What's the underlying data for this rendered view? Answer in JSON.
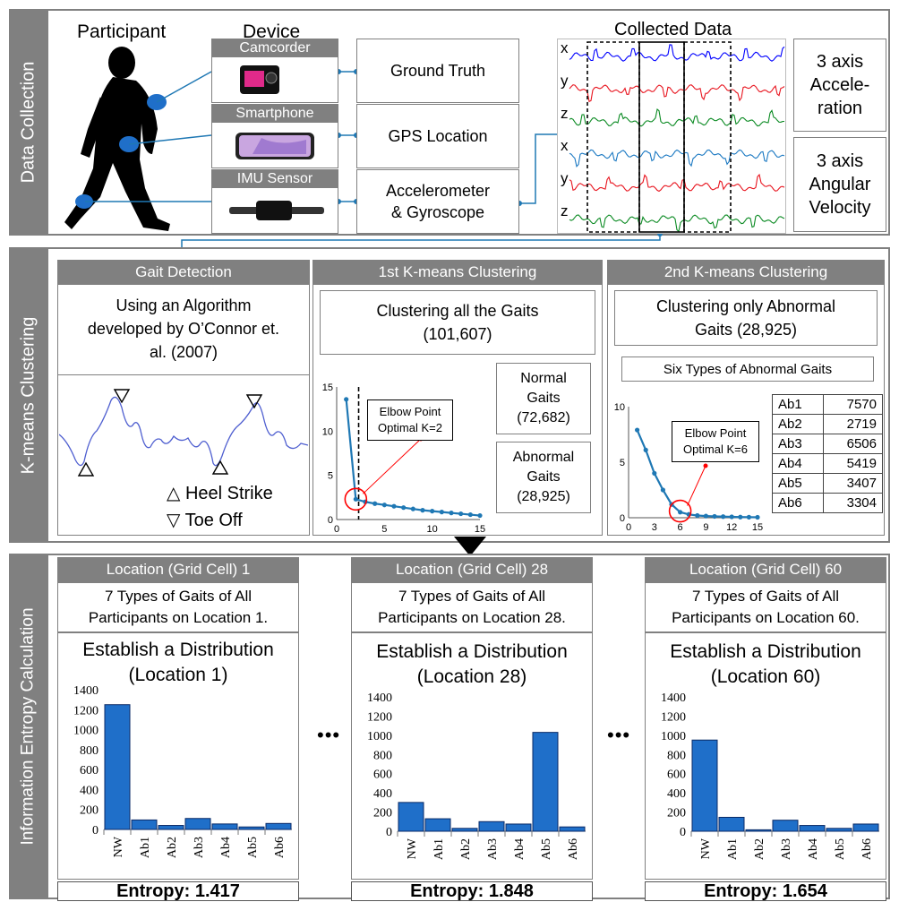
{
  "sections": {
    "data_collection": "Data Collection",
    "kmeans": "K-means Clustering",
    "entropy": "Information Entropy Calculation"
  },
  "collection": {
    "participant_title": "Participant",
    "device_title": "Device",
    "collected_title": "Collected Data",
    "devices": [
      {
        "name": "Camcorder",
        "output": "Ground Truth"
      },
      {
        "name": "Smartphone",
        "output": "GPS Location"
      },
      {
        "name": "IMU Sensor",
        "output": "Accelerometer & Gyroscope"
      }
    ],
    "output_line1": "Accelerometer",
    "output_line2": "& Gyroscope",
    "axis_labels": [
      "x",
      "y",
      "z",
      "x",
      "y",
      "z"
    ],
    "signal_colors": [
      "#0000ff",
      "#e8141e",
      "#0a8a22",
      "#1a78c2",
      "#e8141e",
      "#0a8a22"
    ],
    "accel": [
      "3 axis",
      "Accele-",
      "ration"
    ],
    "angular": [
      "3 axis",
      "Angular",
      "Velocity"
    ]
  },
  "gait_detection": {
    "header": "Gait Detection",
    "desc": [
      "Using an Algorithm",
      "developed by O’Connor et.",
      "al. (2007)"
    ],
    "heel_strike": "△ Heel Strike",
    "toe_off": "▽ Toe Off"
  },
  "first_kmeans": {
    "header": "1st K-means Clustering",
    "desc": [
      "Clustering all the Gaits",
      "(101,607)"
    ],
    "elbow": [
      "Elbow Point",
      "Optimal K=2"
    ],
    "normal": [
      "Normal",
      "Gaits",
      "(72,682)"
    ],
    "abnormal": [
      "Abnormal",
      "Gaits",
      "(28,925)"
    ],
    "yticks": [
      "0",
      "5",
      "10",
      "15"
    ],
    "xticks": [
      "0",
      "5",
      "10",
      "15"
    ]
  },
  "second_kmeans": {
    "header": "2nd K-means Clustering",
    "desc": [
      "Clustering only Abnormal",
      "Gaits (28,925)"
    ],
    "six_types": "Six Types of Abnormal Gaits",
    "elbow": [
      "Elbow Point",
      "Optimal K=6"
    ],
    "yticks": [
      "0",
      "5",
      "10"
    ],
    "xticks": [
      "0",
      "3",
      "6",
      "9",
      "12",
      "15"
    ],
    "table": [
      {
        "label": "Ab1",
        "value": "7570"
      },
      {
        "label": "Ab2",
        "value": "2719"
      },
      {
        "label": "Ab3",
        "value": "6506"
      },
      {
        "label": "Ab4",
        "value": "5419"
      },
      {
        "label": "Ab5",
        "value": "3407"
      },
      {
        "label": "Ab6",
        "value": "3304"
      }
    ]
  },
  "ellipsis": "•••",
  "locations": [
    {
      "header": "Location (Grid Cell) 1",
      "desc": [
        "7 Types of Gaits of All",
        "Participants on Location 1."
      ],
      "dist": [
        "Establish a Distribution",
        "(Location 1)"
      ],
      "entropy": "Entropy: 1.417"
    },
    {
      "header": "Location (Grid Cell) 28",
      "desc": [
        "7 Types of Gaits of All",
        "Participants on Location 28."
      ],
      "dist": [
        "Establish a Distribution",
        "(Location 28)"
      ],
      "entropy": "Entropy: 1.848"
    },
    {
      "header": "Location (Grid Cell) 60",
      "desc": [
        "7 Types of Gaits of All",
        "Participants on Location 60."
      ],
      "dist": [
        "Establish a Distribution",
        "(Location 60)"
      ],
      "entropy": "Entropy: 1.654"
    }
  ],
  "colors": {
    "gray": "#808080",
    "bar": "#1f6fc9",
    "bar_edge": "#0a2a66",
    "curve": "#1f78b4",
    "red": "#ff0000"
  },
  "chart_data": [
    {
      "type": "line",
      "x": [
        1,
        2,
        3,
        4,
        5,
        6,
        7,
        8,
        9,
        10,
        11,
        12,
        13,
        14,
        15
      ],
      "values": [
        13.6,
        2.3,
        2.0,
        1.8,
        1.65,
        1.5,
        1.35,
        1.2,
        1.05,
        0.95,
        0.85,
        0.75,
        0.65,
        0.55,
        0.45
      ],
      "xlim": [
        0,
        15
      ],
      "ylim": [
        0,
        15
      ],
      "marker_x": 2.3
    },
    {
      "type": "line",
      "x": [
        1,
        2,
        3,
        4,
        5,
        6,
        7,
        8,
        9,
        10,
        11,
        12,
        13,
        14,
        15
      ],
      "values": [
        7.9,
        6.1,
        4.0,
        2.5,
        1.2,
        0.5,
        0.3,
        0.2,
        0.15,
        0.12,
        0.1,
        0.08,
        0.06,
        0.05,
        0.04
      ],
      "xlim": [
        0,
        15
      ],
      "ylim": [
        0,
        10
      ]
    },
    {
      "type": "bar",
      "categories": [
        "NW",
        "Ab1",
        "Ab2",
        "Ab3",
        "Ab4",
        "Ab5",
        "Ab6"
      ],
      "values": [
        1250,
        95,
        40,
        110,
        55,
        25,
        60
      ],
      "ylim": [
        0,
        1400
      ],
      "yticks": [
        0,
        200,
        400,
        600,
        800,
        1000,
        1200,
        1400
      ]
    },
    {
      "type": "bar",
      "categories": [
        "NW",
        "Ab1",
        "Ab2",
        "Ab3",
        "Ab4",
        "Ab5",
        "Ab6"
      ],
      "values": [
        300,
        130,
        30,
        100,
        75,
        1030,
        45
      ],
      "ylim": [
        0,
        1400
      ],
      "yticks": [
        0,
        200,
        400,
        600,
        800,
        1000,
        1200,
        1400
      ]
    },
    {
      "type": "bar",
      "categories": [
        "NW",
        "Ab1",
        "Ab2",
        "Ab3",
        "Ab4",
        "Ab5",
        "Ab6"
      ],
      "values": [
        950,
        145,
        15,
        115,
        60,
        30,
        75
      ],
      "ylim": [
        0,
        1400
      ],
      "yticks": [
        0,
        200,
        400,
        600,
        800,
        1000,
        1200,
        1400
      ]
    }
  ]
}
